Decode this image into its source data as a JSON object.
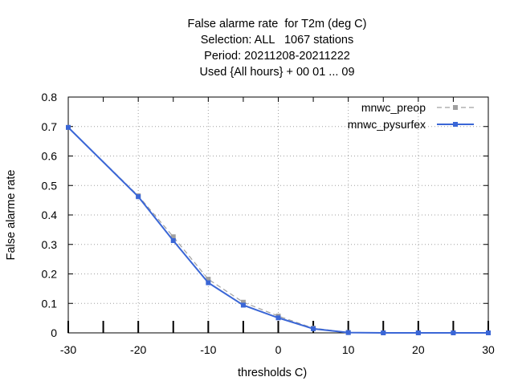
{
  "chart_data": {
    "type": "line",
    "title_lines": [
      "False alarme rate  for T2m (deg C)",
      "Selection: ALL   1067 stations",
      "Period: 20211208-20211222",
      "Used {All hours} + 00 01 ... 09"
    ],
    "xlabel": "thresholds C)",
    "ylabel": "False alarme rate",
    "xlim": [
      -30,
      30
    ],
    "ylim": [
      0,
      0.8
    ],
    "xticks": [
      -30,
      -20,
      -10,
      0,
      10,
      20,
      30
    ],
    "xticklabels": [
      "-30",
      "-20",
      "-10",
      "0",
      "10",
      "20",
      "30"
    ],
    "yticks": [
      0,
      0.1,
      0.2,
      0.3,
      0.4,
      0.5,
      0.6,
      0.7,
      0.8
    ],
    "yticklabels": [
      "0",
      "0.1",
      "0.2",
      "0.3",
      "0.4",
      "0.5",
      "0.6",
      "0.7",
      "0.8"
    ],
    "grid": true,
    "legend_position": "top-right",
    "x": [
      -30,
      -20,
      -15,
      -10,
      -5,
      0,
      5,
      10,
      15,
      20,
      25,
      30
    ],
    "series": [
      {
        "name": "mnwc_preop",
        "color": "#a0a0a0",
        "dashed": true,
        "values": [
          0.697,
          0.465,
          0.326,
          0.182,
          0.104,
          0.057,
          0.016,
          0.001,
          0.0,
          0.0,
          0.0,
          0.0
        ]
      },
      {
        "name": "mnwc_pysurfex",
        "color": "#3a66d6",
        "dashed": false,
        "values": [
          0.697,
          0.462,
          0.313,
          0.17,
          0.094,
          0.051,
          0.014,
          0.001,
          0.0,
          0.0,
          0.0,
          0.0
        ]
      }
    ]
  }
}
